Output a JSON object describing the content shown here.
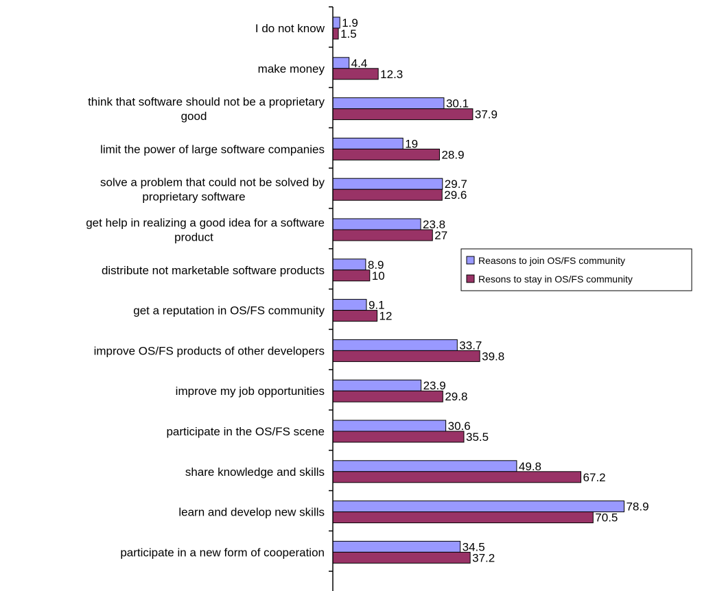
{
  "chart_data": {
    "type": "bar",
    "orientation": "horizontal",
    "categories": [
      "I do not know",
      "make money",
      "think that software should not be a proprietary good",
      "limit the power of large software companies",
      "solve a problem that could not be solved by proprietary software",
      "get help in realizing a good idea for a software product",
      "distribute not marketable software products",
      "get a reputation in OS/FS community",
      "improve OS/FS products of other developers",
      "improve my job opportunities",
      "participate in the OS/FS scene",
      "share knowledge and skills",
      "learn and develop new skills",
      "participate in a new form of cooperation"
    ],
    "category_lines": [
      [
        "I do not know"
      ],
      [
        "make money"
      ],
      [
        "think that software should not be a proprietary",
        "good"
      ],
      [
        "limit the power of large software companies"
      ],
      [
        "solve a problem that could not be solved by",
        "proprietary software"
      ],
      [
        "get help in realizing a good idea for a software",
        "product"
      ],
      [
        "distribute not marketable software products"
      ],
      [
        "get a reputation in OS/FS community"
      ],
      [
        "improve OS/FS products of other developers"
      ],
      [
        "improve my job opportunities"
      ],
      [
        "participate in the OS/FS scene"
      ],
      [
        "share knowledge and skills"
      ],
      [
        "learn and develop new skills"
      ],
      [
        "participate in a new form of cooperation"
      ]
    ],
    "series": [
      {
        "name": "Reasons to join OS/FS community",
        "color": "#9999ff",
        "values": [
          1.9,
          4.4,
          30.1,
          19,
          29.7,
          23.8,
          8.9,
          9.1,
          33.7,
          23.9,
          30.6,
          49.8,
          78.9,
          34.5
        ]
      },
      {
        "name": "Resons to stay in OS/FS community",
        "color": "#993366",
        "values": [
          1.5,
          12.3,
          37.9,
          28.9,
          29.6,
          27,
          10,
          12,
          39.8,
          29.8,
          35.5,
          67.2,
          70.5,
          37.2
        ]
      }
    ],
    "xlim": [
      0,
      85
    ],
    "grid": false,
    "legend_position": "center-right"
  }
}
